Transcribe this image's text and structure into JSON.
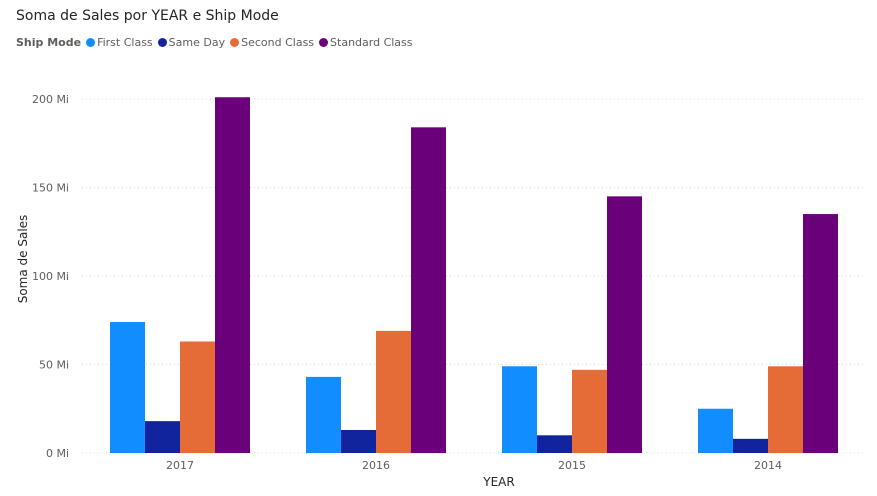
{
  "chart_data": {
    "type": "bar",
    "title": "Soma de Sales por YEAR e Ship Mode",
    "legend_title": "Ship Mode",
    "legend_position": "top-left",
    "xlabel": "YEAR",
    "ylabel": "Soma de Sales",
    "categories": [
      "2017",
      "2016",
      "2015",
      "2014"
    ],
    "ylim": [
      0,
      200
    ],
    "yticks": [
      {
        "value": 0,
        "label": "0 Mi"
      },
      {
        "value": 50,
        "label": "50 Mi"
      },
      {
        "value": 100,
        "label": "100 Mi"
      },
      {
        "value": 150,
        "label": "150 Mi"
      },
      {
        "value": 200,
        "label": "200 Mi"
      }
    ],
    "grid": true,
    "series": [
      {
        "name": "First Class",
        "color": "#118DFF",
        "values": [
          74,
          43,
          49,
          25
        ]
      },
      {
        "name": "Same Day",
        "color": "#12239E",
        "values": [
          18,
          13,
          10,
          8
        ]
      },
      {
        "name": "Second Class",
        "color": "#E66C37",
        "values": [
          63,
          69,
          47,
          49
        ]
      },
      {
        "name": "Standard Class",
        "color": "#6B007B",
        "values": [
          201,
          184,
          145,
          135
        ]
      }
    ]
  }
}
